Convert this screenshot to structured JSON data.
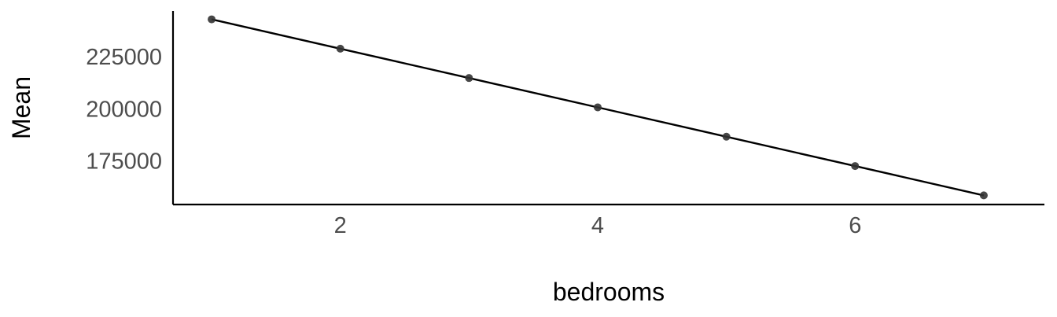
{
  "chart_data": {
    "type": "line",
    "title": "",
    "xlabel": "bedrooms",
    "ylabel": "Mean",
    "x": [
      1,
      2,
      3,
      4,
      5,
      6,
      7
    ],
    "series": [
      {
        "values": [
          243000,
          228900,
          214800,
          200700,
          186600,
          172500,
          158400
        ]
      }
    ],
    "xlim": [
      0.7,
      7.3
    ],
    "ylim": [
      154000,
      247000
    ],
    "xticks": [
      2,
      4,
      6
    ],
    "xtick_labels": [
      "2",
      "4",
      "6"
    ],
    "yticks": [
      175000,
      200000,
      225000
    ],
    "ytick_labels": [
      "175000",
      "200000",
      "225000"
    ],
    "grid": false,
    "legend": "none",
    "colors": {
      "line": "#000000",
      "points": "#333333",
      "axis": "#000000",
      "tick_text": "#4d4d4d"
    }
  }
}
